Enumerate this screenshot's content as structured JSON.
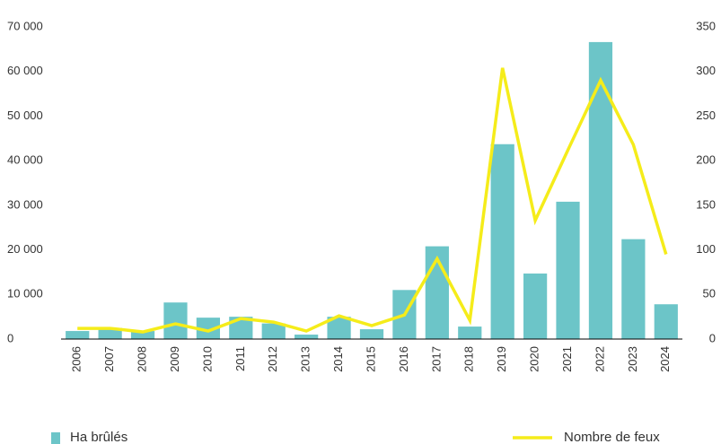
{
  "chart_data": {
    "type": "bar_line",
    "categories": [
      "2006",
      "2007",
      "2008",
      "2009",
      "2010",
      "2011",
      "2012",
      "2013",
      "2014",
      "2015",
      "2016",
      "2017",
      "2018",
      "2019",
      "2020",
      "2021",
      "2022",
      "2023",
      "2024"
    ],
    "series": [
      {
        "name": "Ha brûlés",
        "type": "bar",
        "color": "#6cc5c8",
        "axis": "y",
        "values": [
          1800,
          2500,
          1800,
          8200,
          4800,
          5000,
          3500,
          1000,
          5000,
          2200,
          11000,
          20800,
          2800,
          43700,
          14700,
          30800,
          66600,
          22400,
          7800
        ]
      },
      {
        "name": "Nombre de feux",
        "type": "line",
        "color": "#f5ec1a",
        "axis": "y2",
        "values": [
          12,
          12,
          8,
          17,
          9,
          23,
          19,
          9,
          26,
          15,
          27,
          90,
          21,
          304,
          133,
          212,
          290,
          218,
          95
        ]
      }
    ],
    "ylim": [
      0,
      70000
    ],
    "yticks": [
      {
        "value": 0,
        "label": "0"
      },
      {
        "value": 10000,
        "label": "10 000"
      },
      {
        "value": 20000,
        "label": "20 000"
      },
      {
        "value": 30000,
        "label": "30 000"
      },
      {
        "value": 40000,
        "label": "40 000"
      },
      {
        "value": 50000,
        "label": "50 000"
      },
      {
        "value": 60000,
        "label": "60 000"
      },
      {
        "value": 70000,
        "label": "70 000"
      }
    ],
    "y2lim": [
      0,
      350
    ],
    "y2ticks": [
      0,
      50,
      100,
      150,
      200,
      250,
      300,
      350
    ],
    "grid": false
  }
}
